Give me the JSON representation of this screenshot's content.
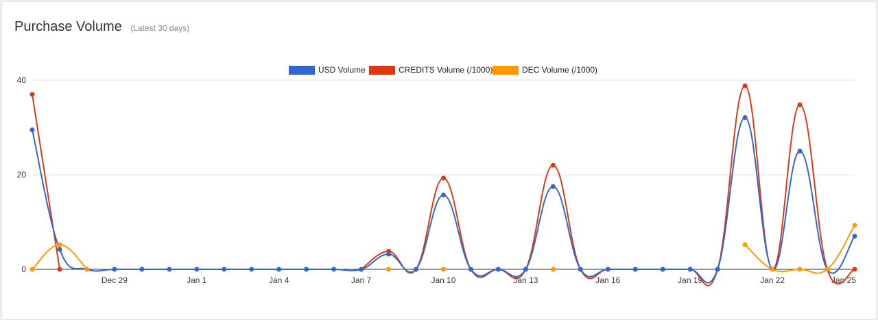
{
  "header": {
    "title": "Purchase Volume",
    "subtitle": "(Latest 30 days)"
  },
  "chart_data": {
    "type": "line",
    "title": "Purchase Volume",
    "subtitle": "(Latest 30 days)",
    "xlabel": "",
    "ylabel": "",
    "ylim": [
      0,
      40
    ],
    "yticks": [
      0,
      20,
      40
    ],
    "x_tick_labels": [
      {
        "index": 3,
        "label": "Dec 29"
      },
      {
        "index": 6,
        "label": "Jan 1"
      },
      {
        "index": 9,
        "label": "Jan 4"
      },
      {
        "index": 12,
        "label": "Jan 7"
      },
      {
        "index": 15,
        "label": "Jan 10"
      },
      {
        "index": 18,
        "label": "Jan 13"
      },
      {
        "index": 21,
        "label": "Jan 16"
      },
      {
        "index": 24,
        "label": "Jan 19"
      },
      {
        "index": 27,
        "label": "Jan 22"
      },
      {
        "index": 30,
        "label": "Jan 25"
      }
    ],
    "x": [
      "Dec 26",
      "Dec 27",
      "Dec 28",
      "Dec 29",
      "Dec 30",
      "Dec 31",
      "Jan 1",
      "Jan 2",
      "Jan 3",
      "Jan 4",
      "Jan 5",
      "Jan 6",
      "Jan 7",
      "Jan 8",
      "Jan 9",
      "Jan 10",
      "Jan 11",
      "Jan 12",
      "Jan 13",
      "Jan 14",
      "Jan 15",
      "Jan 16",
      "Jan 17",
      "Jan 18",
      "Jan 19",
      "Jan 20",
      "Jan 21",
      "Jan 22",
      "Jan 23",
      "Jan 24",
      "Jan 25"
    ],
    "gridlines": true,
    "legend_position": "top",
    "series": [
      {
        "name": "USD Volume",
        "color": "#3366cc",
        "values": [
          29.5,
          4.2,
          0,
          0,
          0,
          0,
          0,
          0,
          0,
          0,
          0,
          0,
          0,
          3.2,
          0,
          15.7,
          0,
          0,
          0,
          17.5,
          0,
          0,
          0,
          0,
          0,
          0,
          32.1,
          0,
          25,
          0,
          7
        ]
      },
      {
        "name": "CREDITS Volume (/1000)",
        "color": "#dc3912",
        "values": [
          37,
          0,
          null,
          null,
          null,
          null,
          null,
          null,
          null,
          null,
          null,
          null,
          0,
          3.8,
          0,
          19.3,
          0,
          0,
          0,
          22,
          0,
          0,
          0,
          0,
          0,
          0,
          38.8,
          0,
          34.8,
          0,
          0
        ]
      },
      {
        "name": "DEC Volume (/1000)",
        "color": "#ff9900",
        "values": [
          0,
          5.2,
          0,
          null,
          null,
          null,
          null,
          null,
          null,
          null,
          null,
          null,
          null,
          0,
          null,
          0,
          null,
          null,
          null,
          0,
          null,
          null,
          null,
          null,
          null,
          null,
          5.2,
          0,
          0,
          0,
          9.3
        ]
      }
    ]
  }
}
